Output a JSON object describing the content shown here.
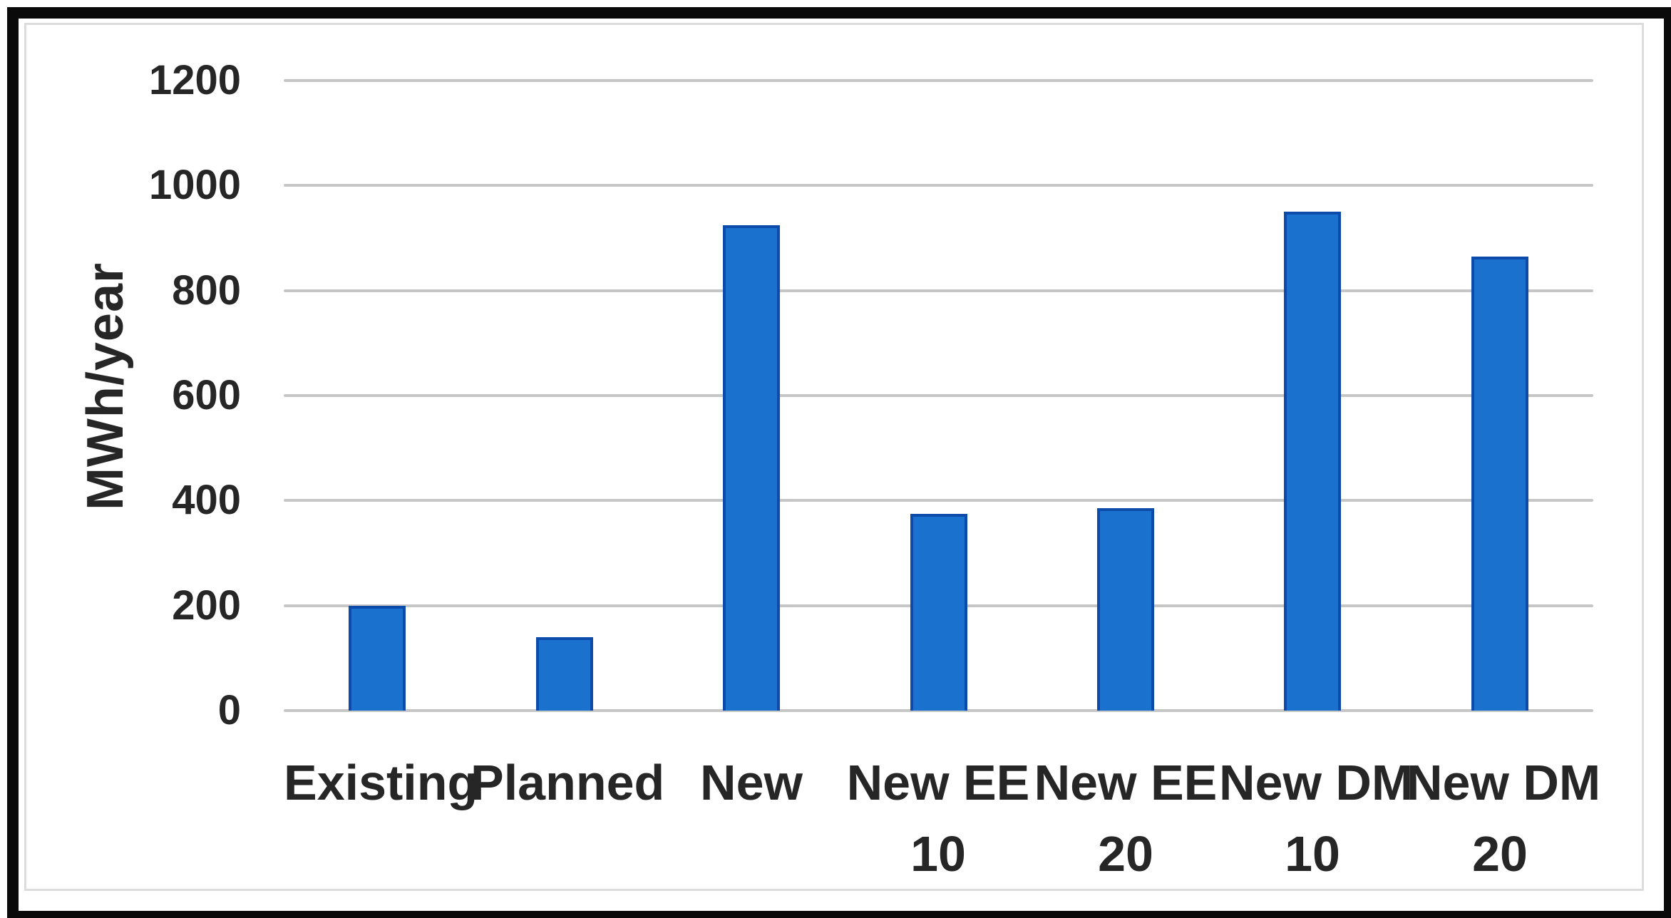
{
  "chart_data": {
    "type": "bar",
    "title": "",
    "xlabel": "",
    "ylabel": "MWh/year",
    "categories": [
      "Existing",
      "Planned",
      "New",
      "New EE 10",
      "New EE 20",
      "New DM 10",
      "New DM 20"
    ],
    "category_label_lines": [
      [
        "Existing"
      ],
      [
        "Planned"
      ],
      [
        "New"
      ],
      [
        "New EE",
        "10"
      ],
      [
        "New EE",
        "20"
      ],
      [
        "New DM",
        "10"
      ],
      [
        "New DM",
        "20"
      ]
    ],
    "values": [
      200,
      140,
      925,
      375,
      385,
      950,
      865
    ],
    "ylim": [
      0,
      1200
    ],
    "yticks": [
      0,
      200,
      400,
      600,
      800,
      1000,
      1200
    ],
    "grid": "horizontal",
    "legend": "none",
    "colors": {
      "bar_fill": "#1a72ce",
      "bar_border": "#0d4bab",
      "gridline": "#c6c6c6",
      "text": "#262626",
      "figure_border": "#0a0a0a",
      "chart_frame": "#dcdcdc"
    }
  }
}
